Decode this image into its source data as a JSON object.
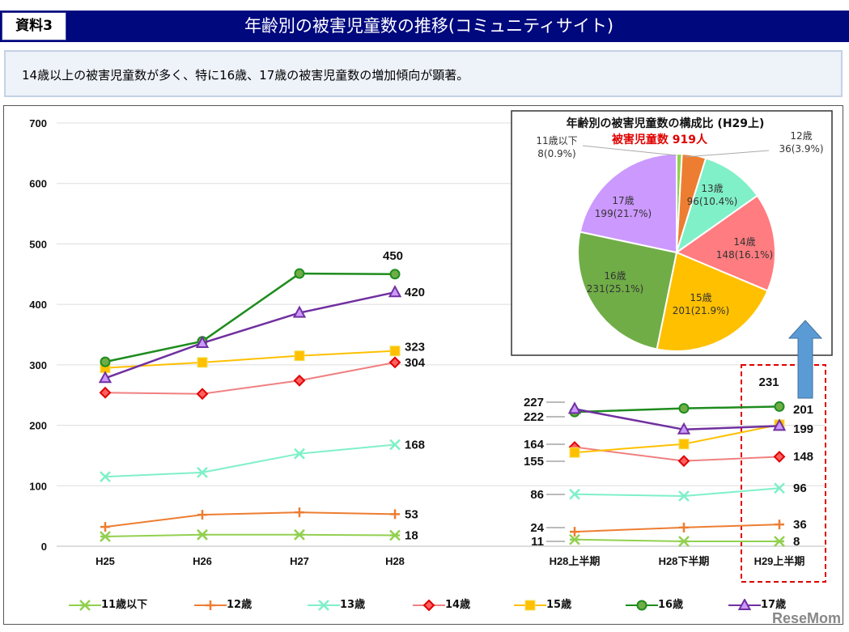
{
  "header": {
    "tag": "資料3",
    "title": "年齢別の被害児童数の推移(コミュニティサイト)"
  },
  "subtitle": "14歳以上の被害児童数が多く、特に16歳、17歳の被害児童数の増加傾向が顕著。",
  "watermark": "ReseMom",
  "chart_data": [
    {
      "type": "line",
      "ylim": [
        0,
        700
      ],
      "yticks": [
        0,
        100,
        200,
        300,
        400,
        500,
        600,
        700
      ],
      "grid": true,
      "legend": "bottom",
      "groups": [
        {
          "categories": [
            "H25",
            "H26",
            "H27",
            "H28"
          ]
        },
        {
          "categories": [
            "H28上半期",
            "H28下半期",
            "H29上半期"
          ]
        }
      ],
      "series": [
        {
          "name": "11歳以下",
          "color": "#92d050",
          "marker": "asterisk",
          "values": [
            16,
            19,
            19,
            18
          ],
          "values2": [
            11,
            8,
            8
          ]
        },
        {
          "name": "12歳",
          "color": "#ed7d31",
          "marker": "plus",
          "values": [
            32,
            52,
            56,
            53
          ],
          "values2": [
            24,
            31,
            36
          ]
        },
        {
          "name": "13歳",
          "color": "#7ff0c8",
          "marker": "x",
          "values": [
            115,
            122,
            153,
            168
          ],
          "values2": [
            86,
            83,
            96
          ]
        },
        {
          "name": "14歳",
          "color": "#f08080",
          "marker": "diamond",
          "values": [
            254,
            252,
            274,
            304
          ],
          "values2": [
            164,
            141,
            148
          ]
        },
        {
          "name": "15歳",
          "color": "#ffc000",
          "marker": "square",
          "values": [
            295,
            304,
            315,
            323
          ],
          "values2": [
            155,
            169,
            201
          ]
        },
        {
          "name": "16歳",
          "color": "#1e8c1e",
          "marker": "circle",
          "values": [
            305,
            339,
            451,
            450
          ],
          "values2": [
            222,
            228,
            231
          ]
        },
        {
          "name": "17歳",
          "color": "#7030a0",
          "marker": "triangle",
          "values": [
            278,
            336,
            386,
            420
          ],
          "values2": [
            227,
            193,
            199
          ]
        }
      ],
      "data_labels": {
        "H28": [
          "18",
          "53",
          "168",
          "304",
          "323",
          "450",
          "420"
        ],
        "H28上半期": [
          "11",
          "24",
          "86",
          "164",
          "155",
          "222",
          "227"
        ],
        "H29上半期": [
          "8",
          "36",
          "96",
          "148",
          "201",
          "231",
          "199"
        ]
      },
      "highlight": "H29上半期"
    },
    {
      "type": "pie",
      "title": "年齢別の被害児童数の構成比 (H29上)",
      "subtitle": "被害児童数 919人",
      "subtitle_color": "#e00000",
      "slices": [
        {
          "label": "11歳以下",
          "value": 8,
          "text": "8(0.9%)",
          "color": "#92d050"
        },
        {
          "label": "12歳",
          "value": 36,
          "text": "36(3.9%)",
          "color": "#ed7d31"
        },
        {
          "label": "13歳",
          "value": 96,
          "text": "96(10.4%)",
          "color": "#7ff0c8"
        },
        {
          "label": "14歳",
          "value": 148,
          "text": "148(16.1%)",
          "color": "#ff7c80"
        },
        {
          "label": "15歳",
          "value": 201,
          "text": "201(21.9%)",
          "color": "#ffc000"
        },
        {
          "label": "16歳",
          "value": 231,
          "text": "231(25.1%)",
          "color": "#70ad47"
        },
        {
          "label": "17歳",
          "value": 199,
          "text": "199(21.7%)",
          "color": "#cc99ff"
        }
      ]
    }
  ]
}
